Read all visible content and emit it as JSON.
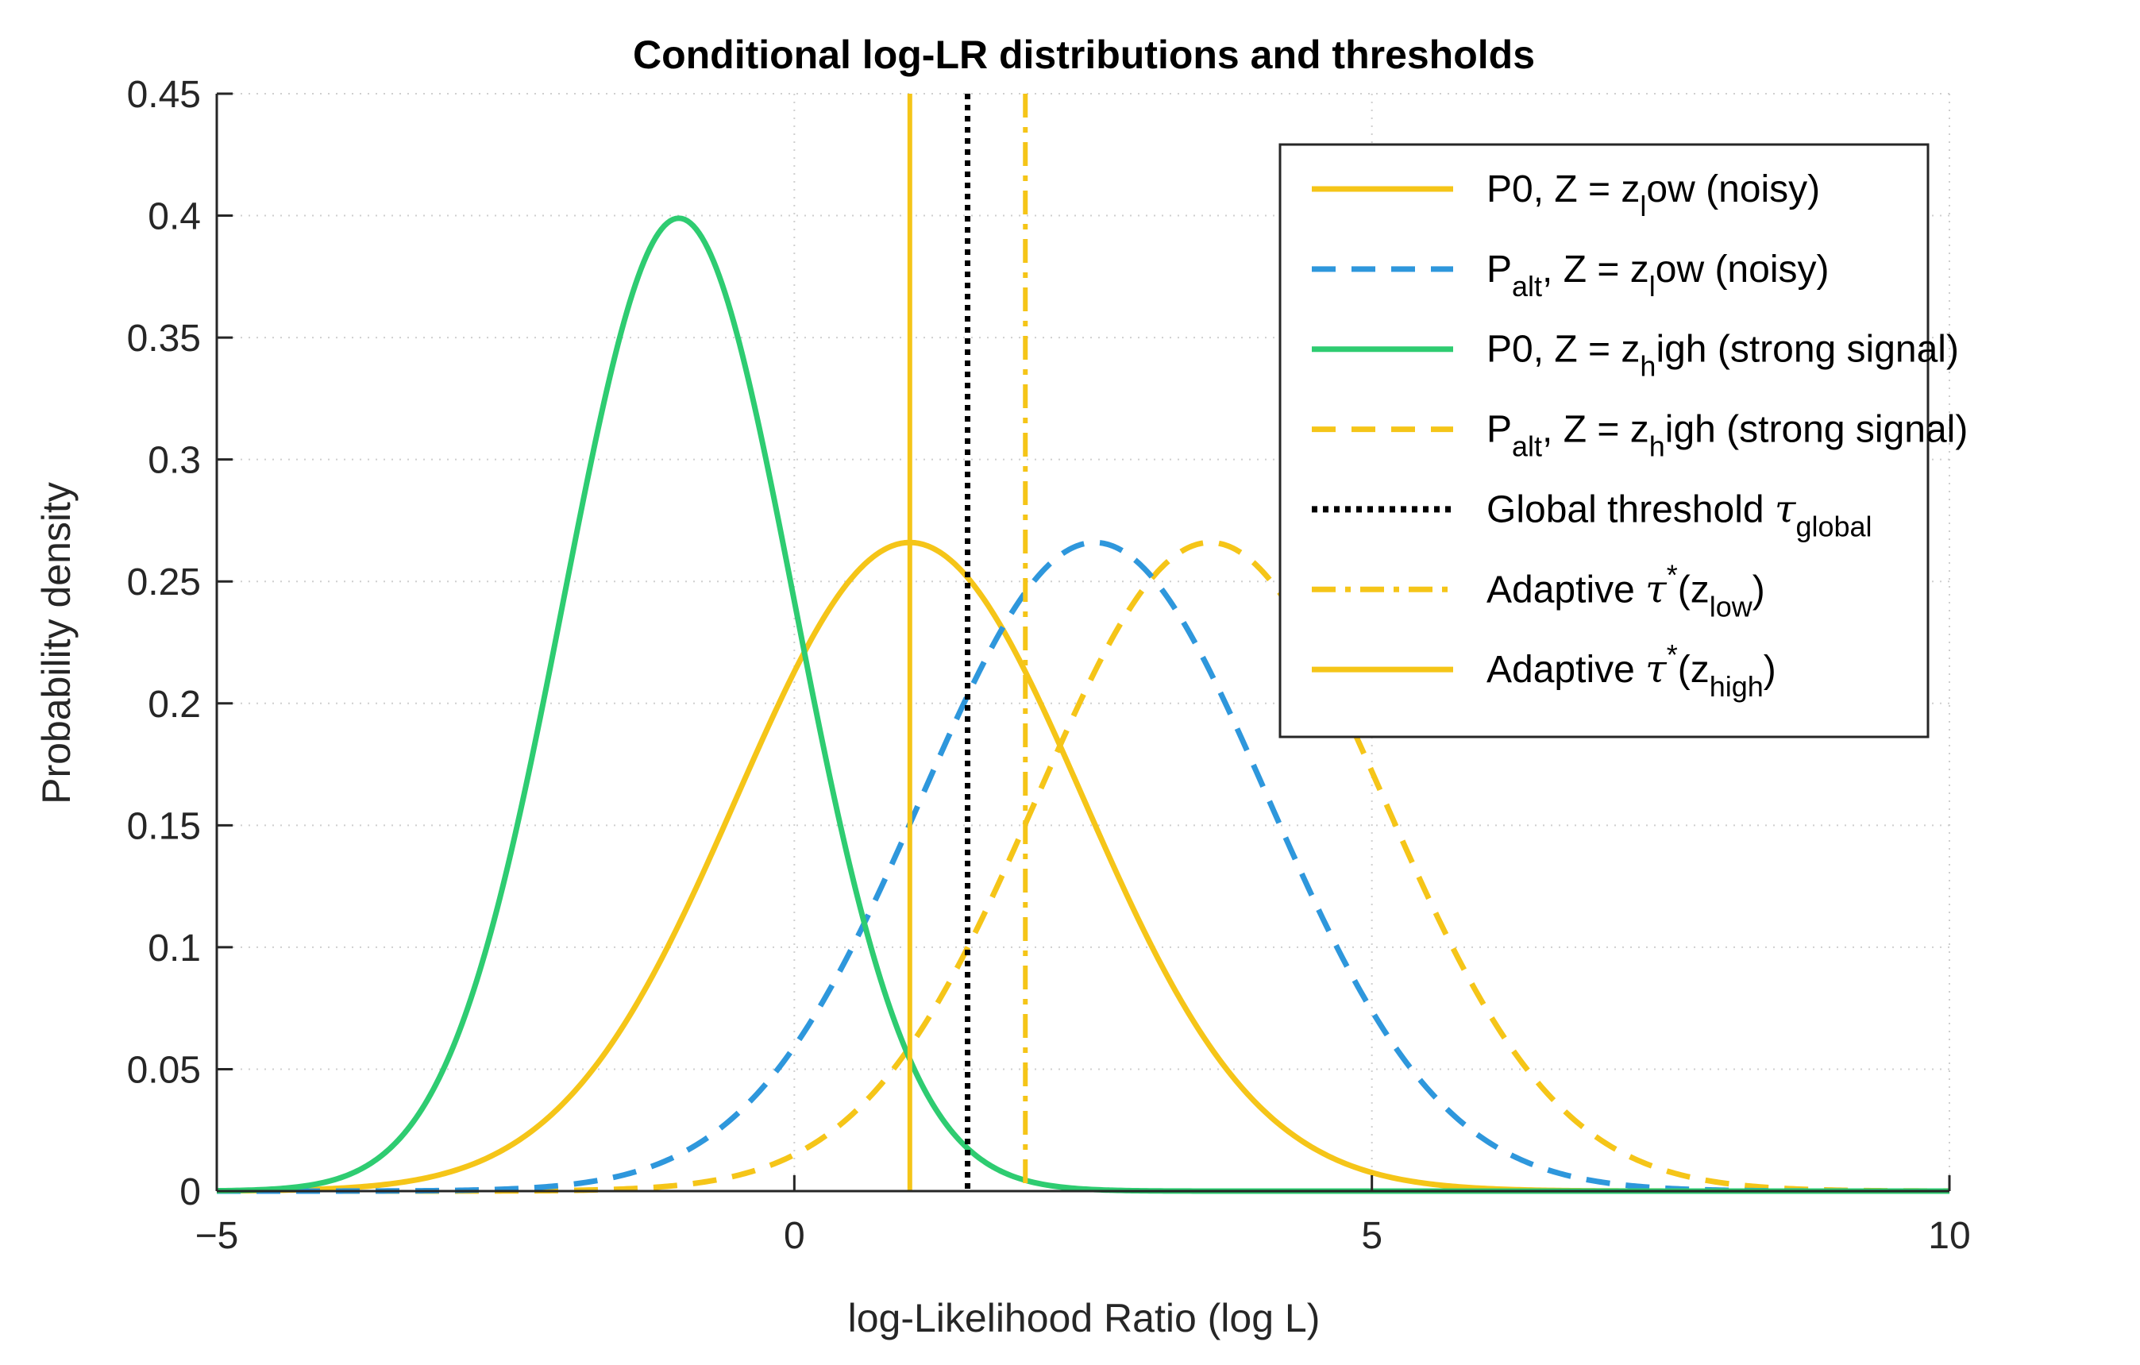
{
  "chart_data": {
    "type": "line",
    "title": "Conditional log-LR distributions and thresholds",
    "xlabel": "log-Likelihood Ratio (log L)",
    "ylabel": "Probability density",
    "xlim": [
      -5,
      10
    ],
    "ylim": [
      0,
      0.45
    ],
    "xticks": [
      -5,
      0,
      5,
      10
    ],
    "xtick_labels": [
      "−5",
      "0",
      "5",
      "10"
    ],
    "yticks": [
      0,
      0.05,
      0.1,
      0.15,
      0.2,
      0.25,
      0.3,
      0.35,
      0.4,
      0.45
    ],
    "ytick_labels": [
      "0",
      "0.05",
      "0.1",
      "0.15",
      "0.2",
      "0.25",
      "0.3",
      "0.35",
      "0.4",
      "0.45"
    ],
    "grid": true,
    "legend_position": "top-right",
    "series": [
      {
        "name": "P0, Z = z_low (noisy)",
        "kind": "normal",
        "mean": 1.0,
        "sd": 1.5,
        "color": "#f5c518",
        "dash": "solid"
      },
      {
        "name": "P_alt, Z = z_low (noisy)",
        "kind": "normal",
        "mean": 2.6,
        "sd": 1.5,
        "color": "#2e97dc",
        "dash": "dashed"
      },
      {
        "name": "P0, Z = z_high (strong signal)",
        "kind": "normal",
        "mean": -1.0,
        "sd": 1.0,
        "color": "#2ecc71",
        "dash": "solid"
      },
      {
        "name": "P_alt, Z = z_high (strong signal)",
        "kind": "normal",
        "mean": 3.6,
        "sd": 1.5,
        "color": "#f5c518",
        "dash": "dashed"
      }
    ],
    "thresholds": [
      {
        "name": "Global threshold τ_global",
        "x": 1.5,
        "color": "#000000",
        "dash": "dotted"
      },
      {
        "name": "Adaptive τ*(z_low)",
        "x": 2.0,
        "color": "#f5c518",
        "dash": "dashdot"
      },
      {
        "name": "Adaptive τ*(z_high)",
        "x": 1.0,
        "color": "#f5c518",
        "dash": "solid"
      }
    ],
    "legend": [
      {
        "parts": [
          [
            "P0, Z = z",
            ""
          ],
          [
            "l",
            "sub"
          ],
          [
            "ow (noisy)",
            ""
          ]
        ],
        "color": "#f5c518",
        "dash": "solid"
      },
      {
        "parts": [
          [
            "P",
            ""
          ],
          [
            "alt",
            "sub"
          ],
          [
            ", Z = z",
            ""
          ],
          [
            "l",
            "sub"
          ],
          [
            "ow (noisy)",
            ""
          ]
        ],
        "color": "#2e97dc",
        "dash": "dashed"
      },
      {
        "parts": [
          [
            "P0, Z = z",
            ""
          ],
          [
            "h",
            "sub"
          ],
          [
            "igh (strong signal)",
            ""
          ]
        ],
        "color": "#2ecc71",
        "dash": "solid"
      },
      {
        "parts": [
          [
            "P",
            ""
          ],
          [
            "alt",
            "sub"
          ],
          [
            ", Z = z",
            ""
          ],
          [
            "h",
            "sub"
          ],
          [
            "igh (strong signal)",
            ""
          ]
        ],
        "color": "#f5c518",
        "dash": "dashed"
      },
      {
        "parts": [
          [
            "Global threshold ",
            ""
          ],
          [
            "τ",
            "ital"
          ],
          [
            "global",
            "sub"
          ]
        ],
        "color": "#000000",
        "dash": "dotted"
      },
      {
        "parts": [
          [
            "Adaptive ",
            ""
          ],
          [
            "τ",
            "ital"
          ],
          [
            "*",
            "sup"
          ],
          [
            "(z",
            ""
          ],
          [
            "low",
            "sub"
          ],
          [
            ")",
            ""
          ]
        ],
        "color": "#f5c518",
        "dash": "dashdot"
      },
      {
        "parts": [
          [
            "Adaptive ",
            ""
          ],
          [
            "τ",
            "ital"
          ],
          [
            "*",
            "sup"
          ],
          [
            "(z",
            ""
          ],
          [
            "high",
            "sub"
          ],
          [
            ")",
            ""
          ]
        ],
        "color": "#f5c518",
        "dash": "solid"
      }
    ]
  }
}
